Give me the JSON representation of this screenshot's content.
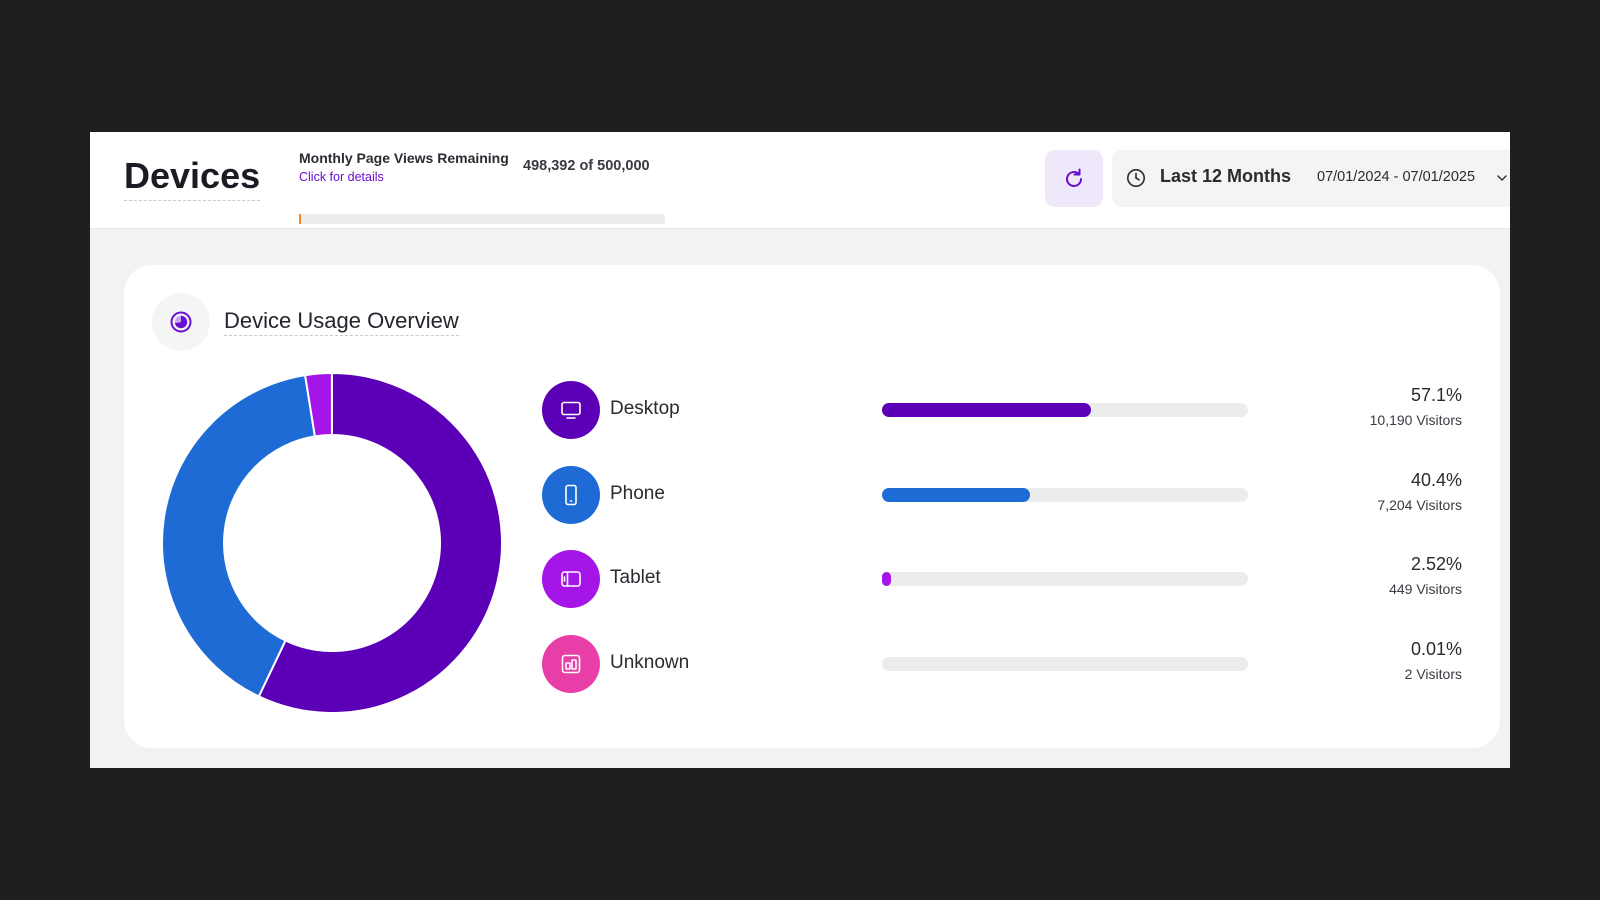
{
  "header": {
    "title": "Devices",
    "quota_label": "Monthly Page Views Remaining",
    "quota_link": "Click for details",
    "quota_count": "498,392 of 500,000",
    "quota_used_fraction": 0.0032,
    "range_label": "Last 12 Months",
    "range_dates": "07/01/2024 - 07/01/2025"
  },
  "icons": {
    "refresh": "refresh-icon",
    "clock": "clock-icon",
    "chevron": "chevron-down-icon",
    "card": "pie-chart-icon"
  },
  "card": {
    "title": "Device Usage Overview"
  },
  "devices": [
    {
      "name": "Desktop",
      "percent": "57.1%",
      "visitors": "10,190 Visitors",
      "icon": "monitor-icon"
    },
    {
      "name": "Phone",
      "percent": "40.4%",
      "visitors": "7,204 Visitors",
      "icon": "phone-icon"
    },
    {
      "name": "Tablet",
      "percent": "2.52%",
      "visitors": "449 Visitors",
      "icon": "tablet-icon"
    },
    {
      "name": "Unknown",
      "percent": "0.01%",
      "visitors": "2 Visitors",
      "icon": "unknown-device-icon"
    }
  ],
  "colors": {
    "Desktop": "#5c00b8",
    "Phone": "#1e6bd6",
    "Tablet": "#a515e8",
    "Unknown": "#e83ea8",
    "accent": "#6a0fd0",
    "quota_fill": "#f08a24"
  },
  "chart_data": {
    "type": "pie",
    "categories": [
      "Desktop",
      "Phone",
      "Tablet",
      "Unknown"
    ],
    "values": [
      57.1,
      40.4,
      2.52,
      0.01
    ],
    "visitors": [
      10190,
      7204,
      449,
      2
    ]
  }
}
